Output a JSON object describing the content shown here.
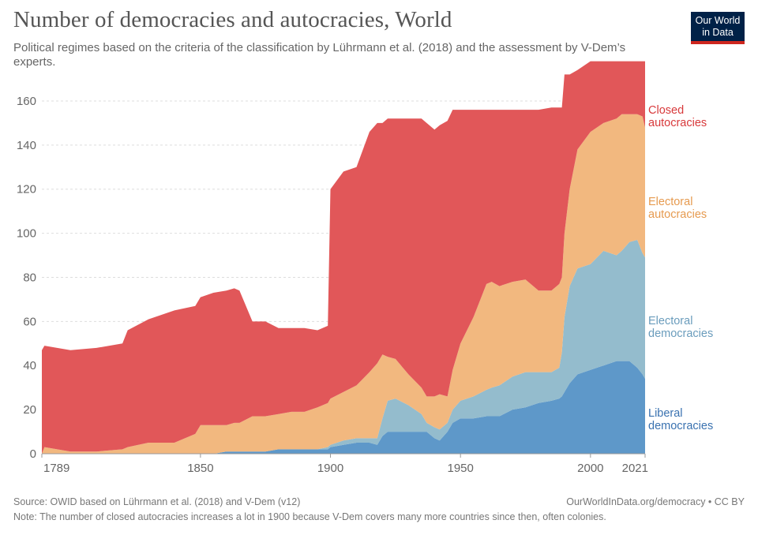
{
  "header": {
    "title": "Number of democracies and autocracies, World",
    "subtitle": "Political regimes based on the criteria of the classification by Lührmann et al. (2018) and the assessment by V-Dem’s experts.",
    "logo_line1": "Our World",
    "logo_line2": "in Data"
  },
  "footer": {
    "source": "Source: OWID based on Lührmann et al. (2018) and V-Dem (v12)",
    "url": "OurWorldInData.org/democracy • CC BY",
    "note": "Note: The number of closed autocracies increases a lot in 1900 because V-Dem covers many more countries since then, often colonies."
  },
  "colors": {
    "closed_autocracies": "#e15759",
    "electoral_autocracies": "#f2b87f",
    "electoral_democracies": "#94bccd",
    "liberal_democracies": "#5e98c9",
    "label_closed": "#d8393b",
    "label_electoral_autocracies": "#e69a4f",
    "label_electoral_democracies": "#6a9cbc",
    "label_liberal": "#3a72b0"
  },
  "chart_data": {
    "type": "area",
    "stacked": true,
    "x": [
      1789,
      1790,
      1800,
      1810,
      1820,
      1822,
      1830,
      1840,
      1848,
      1850,
      1855,
      1860,
      1863,
      1865,
      1870,
      1875,
      1880,
      1885,
      1890,
      1895,
      1899,
      1900,
      1905,
      1910,
      1915,
      1918,
      1920,
      1922,
      1925,
      1930,
      1935,
      1937,
      1940,
      1942,
      1945,
      1947,
      1950,
      1955,
      1960,
      1962,
      1965,
      1970,
      1975,
      1980,
      1985,
      1988,
      1989,
      1990,
      1992,
      1995,
      2000,
      2005,
      2010,
      2012,
      2015,
      2018,
      2020,
      2021
    ],
    "series": [
      {
        "name": "Liberal democracies",
        "values": [
          0,
          0,
          0,
          0,
          0,
          0,
          0,
          0,
          0,
          0,
          0,
          1,
          1,
          1,
          1,
          1,
          2,
          2,
          2,
          2,
          2,
          3,
          4,
          5,
          5,
          4,
          8,
          10,
          10,
          10,
          10,
          10,
          7,
          6,
          10,
          14,
          16,
          16,
          17,
          17,
          17,
          20,
          21,
          23,
          24,
          25,
          26,
          28,
          32,
          36,
          38,
          40,
          42,
          42,
          42,
          39,
          36,
          34
        ]
      },
      {
        "name": "Electoral democracies",
        "values": [
          0,
          0,
          0,
          0,
          0,
          0,
          0,
          0,
          0,
          0,
          0,
          0,
          0,
          0,
          0,
          0,
          0,
          0,
          0,
          0,
          1,
          1,
          2,
          2,
          2,
          3,
          8,
          14,
          15,
          12,
          8,
          4,
          5,
          5,
          4,
          6,
          8,
          10,
          12,
          13,
          14,
          15,
          16,
          14,
          13,
          14,
          20,
          34,
          44,
          48,
          48,
          52,
          48,
          50,
          54,
          58,
          55,
          55
        ]
      },
      {
        "name": "Electoral autocracies",
        "values": [
          0,
          3,
          1,
          1,
          2,
          3,
          5,
          5,
          9,
          13,
          13,
          12,
          13,
          13,
          16,
          16,
          16,
          17,
          17,
          19,
          20,
          21,
          22,
          24,
          30,
          34,
          29,
          20,
          18,
          14,
          12,
          12,
          14,
          16,
          12,
          18,
          26,
          36,
          48,
          48,
          45,
          43,
          42,
          37,
          37,
          38,
          34,
          38,
          44,
          54,
          60,
          58,
          62,
          62,
          58,
          57,
          62,
          59
        ]
      },
      {
        "name": "Closed autocracies",
        "values": [
          47,
          46,
          46,
          47,
          48,
          53,
          56,
          60,
          58,
          58,
          60,
          61,
          61,
          60,
          43,
          43,
          39,
          38,
          38,
          35,
          35,
          95,
          100,
          99,
          109,
          109,
          105,
          108,
          109,
          116,
          122,
          124,
          121,
          122,
          125,
          118,
          106,
          94,
          79,
          78,
          80,
          78,
          77,
          82,
          83,
          80,
          77,
          72,
          52,
          36,
          32,
          28,
          26,
          24,
          24,
          24,
          25,
          30
        ]
      }
    ],
    "xlim": [
      1789,
      2021
    ],
    "ylim": [
      0,
      170
    ],
    "y_ticks": [
      0,
      20,
      40,
      60,
      80,
      100,
      120,
      140,
      160
    ],
    "x_tick_labels": [
      "1789",
      "1850",
      "1900",
      "1950",
      "2000",
      "2021"
    ],
    "x_tick_values": [
      1789,
      1850,
      1900,
      1950,
      2000,
      2021
    ],
    "legend_labels": [
      {
        "series": "Closed autocracies",
        "line1": "Closed",
        "line2": "autocracies"
      },
      {
        "series": "Electoral autocracies",
        "line1": "Electoral",
        "line2": "autocracies"
      },
      {
        "series": "Electoral democracies",
        "line1": "Electoral",
        "line2": "democracies"
      },
      {
        "series": "Liberal democracies",
        "line1": "Liberal",
        "line2": "democracies"
      }
    ],
    "legend_placement": "right",
    "grid": true
  }
}
